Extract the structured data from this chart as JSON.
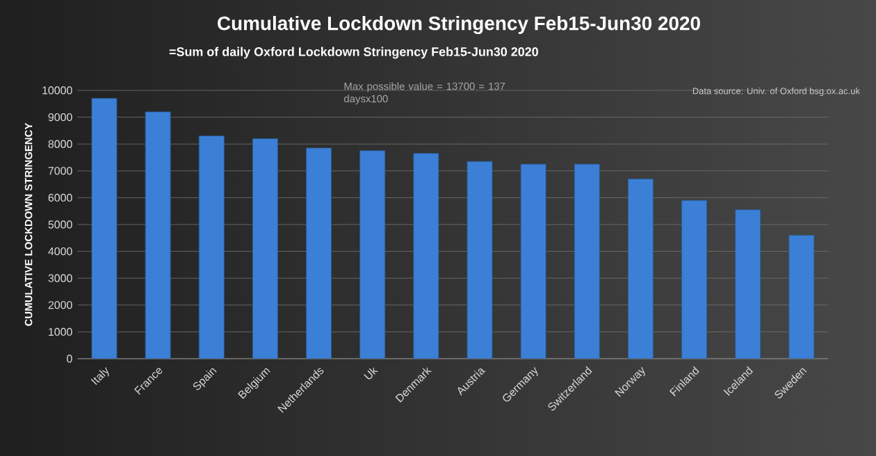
{
  "chart_data": {
    "type": "bar",
    "title": "Cumulative Lockdown Stringency Feb15-Jun30 2020",
    "subtitle": "=Sum of daily Oxford Lockdown Stringency Feb15-Jun30 2020",
    "ylabel": "CUMULATIVE LOCKDOWN STRINGENCY",
    "categories": [
      "Italy",
      "France",
      "Spain",
      "Belgium",
      "Netherlands",
      "Uk",
      "Denmark",
      "Austria",
      "Germany",
      "Switzerland",
      "Norway",
      "Finland",
      "Iceland",
      "Sweden"
    ],
    "values": [
      9700,
      9200,
      8300,
      8200,
      7850,
      7750,
      7650,
      7350,
      7250,
      7250,
      6700,
      5900,
      5550,
      4600
    ],
    "color": "#3b80d6",
    "ylim": [
      0,
      10000
    ],
    "yticks": [
      0,
      1000,
      2000,
      3000,
      4000,
      5000,
      6000,
      7000,
      8000,
      9000,
      10000
    ],
    "grid": "y",
    "annotations": [
      "Max possible value = 13700 = 137 daysx100",
      "Data source: Univ. of Oxford bsg.ox.ac.uk"
    ]
  }
}
